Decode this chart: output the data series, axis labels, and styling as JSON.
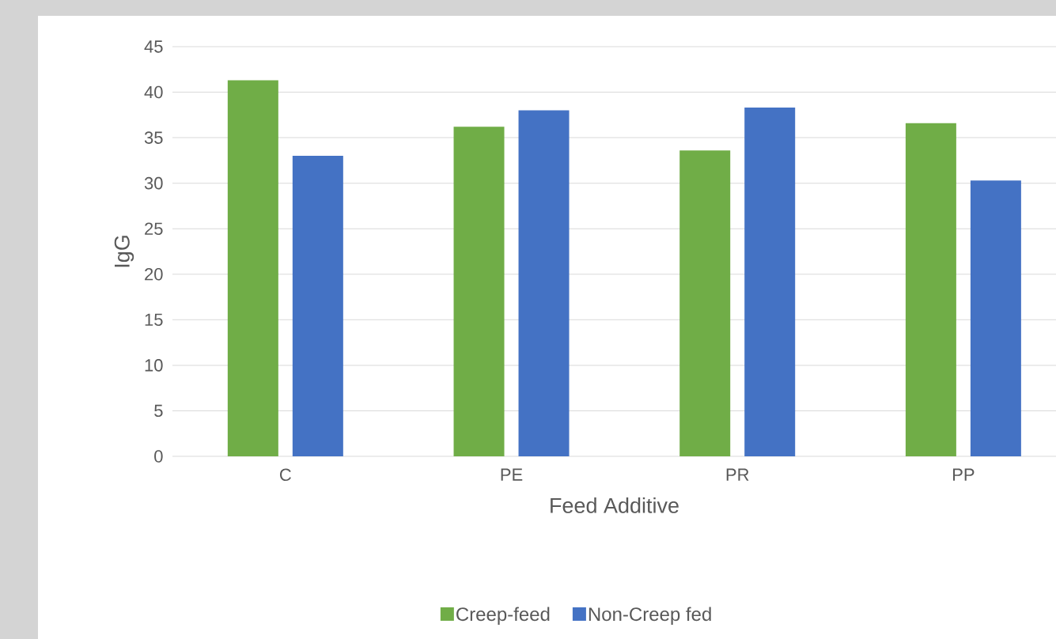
{
  "chart_data": {
    "type": "bar",
    "xlabel": "Feed Additive",
    "ylabel": "IgG",
    "categories": [
      "C",
      "PE",
      "PR",
      "PP"
    ],
    "series": [
      {
        "name": "Creep-feed",
        "color": "#70ad47",
        "values": [
          41.3,
          36.2,
          33.6,
          36.6
        ]
      },
      {
        "name": "Non-Creep fed",
        "color": "#4472c4",
        "values": [
          33.0,
          38.0,
          38.3,
          30.3
        ]
      }
    ],
    "ylim": [
      0,
      45
    ],
    "yticks": [
      0,
      5,
      10,
      15,
      20,
      25,
      30,
      35,
      40,
      45
    ],
    "grid": "y",
    "legend": "bottom"
  }
}
